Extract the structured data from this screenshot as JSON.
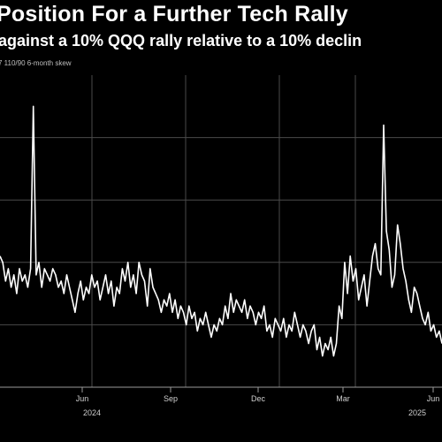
{
  "title": "Position For a Further Tech Rally",
  "subtitle": "against a 10% QQQ rally relative to a 10% declin",
  "footnote": "7 110/90 6-month skew",
  "chart_data": {
    "type": "line",
    "x_tick_labels": [
      "Jun",
      "Sep",
      "Dec",
      "Mar",
      "Jun"
    ],
    "year_labels": [
      "2024",
      "2025"
    ],
    "grid": true,
    "series": [
      {
        "color": "#ffffff",
        "values": [
          2.1,
          2.0,
          1.7,
          1.9,
          1.6,
          1.8,
          1.5,
          1.9,
          1.7,
          1.8,
          1.6,
          1.9,
          4.5,
          1.8,
          2.0,
          1.6,
          1.9,
          1.8,
          1.7,
          1.9,
          1.8,
          1.6,
          1.7,
          1.5,
          1.8,
          1.6,
          1.4,
          1.2,
          1.5,
          1.7,
          1.4,
          1.6,
          1.5,
          1.8,
          1.6,
          1.7,
          1.4,
          1.6,
          1.8,
          1.5,
          1.7,
          1.3,
          1.6,
          1.5,
          1.9,
          1.7,
          2.0,
          1.6,
          1.8,
          1.5,
          2.0,
          1.8,
          1.7,
          1.3,
          1.9,
          1.6,
          1.5,
          1.4,
          1.2,
          1.4,
          1.3,
          1.5,
          1.2,
          1.4,
          1.1,
          1.3,
          1.2,
          1.0,
          1.3,
          1.1,
          1.2,
          0.9,
          1.1,
          1.0,
          1.2,
          1.0,
          0.8,
          1.0,
          0.9,
          1.1,
          1.0,
          1.3,
          1.1,
          1.5,
          1.2,
          1.4,
          1.3,
          1.2,
          1.4,
          1.1,
          1.3,
          1.2,
          1.0,
          1.2,
          1.1,
          1.3,
          0.9,
          1.0,
          0.8,
          1.1,
          1.0,
          0.9,
          1.1,
          0.8,
          1.0,
          0.9,
          1.2,
          1.0,
          0.8,
          1.0,
          0.9,
          0.7,
          0.9,
          1.0,
          0.6,
          0.8,
          0.5,
          0.7,
          0.6,
          0.8,
          0.5,
          0.7,
          1.3,
          1.1,
          2.0,
          1.5,
          2.1,
          1.7,
          1.9,
          1.4,
          1.6,
          1.8,
          1.3,
          1.7,
          2.1,
          2.3,
          1.9,
          1.8,
          4.2,
          2.5,
          2.2,
          1.6,
          1.8,
          2.6,
          2.3,
          1.9,
          1.7,
          1.4,
          1.2,
          1.6,
          1.5,
          1.3,
          1.1,
          1.0,
          1.2,
          0.9,
          1.0,
          0.8,
          0.9,
          0.7
        ]
      }
    ]
  }
}
